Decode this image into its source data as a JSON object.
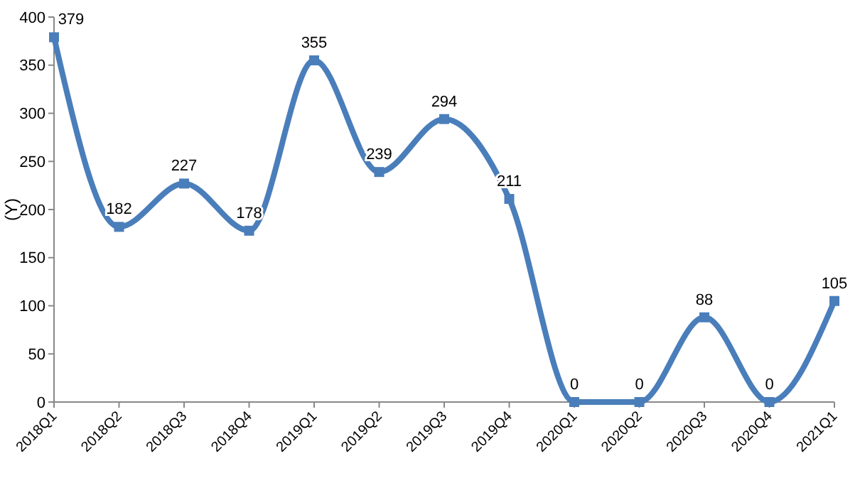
{
  "chart_data": {
    "type": "line",
    "ylabel": "(Y)",
    "categories": [
      "2018Q1",
      "2018Q2",
      "2018Q3",
      "2018Q4",
      "2019Q1",
      "2019Q2",
      "2019Q3",
      "2019Q4",
      "2020Q1",
      "2020Q2",
      "2020Q3",
      "2020Q4",
      "2021Q1"
    ],
    "values": [
      379,
      182,
      227,
      178,
      355,
      239,
      294,
      211,
      0,
      0,
      88,
      0,
      105
    ],
    "color": "#4a7ebb",
    "marker": "square",
    "data_labels": true,
    "ylim": [
      0,
      400
    ],
    "yticks": [
      0,
      50,
      100,
      150,
      200,
      250,
      300,
      350,
      400
    ],
    "grid": false
  }
}
